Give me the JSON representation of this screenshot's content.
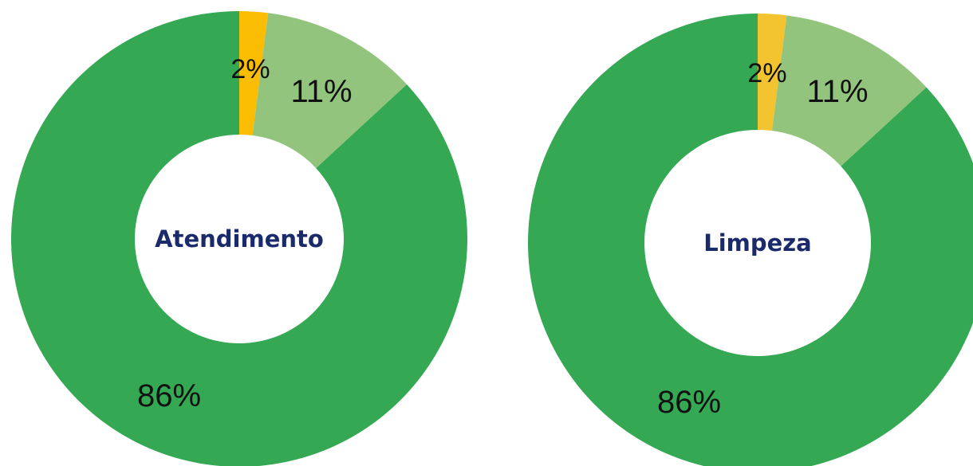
{
  "chart_data": [
    {
      "type": "pie",
      "title": "Atendimento",
      "slices": [
        {
          "value": 2,
          "label": "2%",
          "color": "#fbbc04"
        },
        {
          "value": 11,
          "label": "11%",
          "color": "#93c47d"
        },
        {
          "value": 86,
          "label": "86%",
          "color": "#34a853"
        }
      ]
    },
    {
      "type": "pie",
      "title": "Limpeza",
      "slices": [
        {
          "value": 2,
          "label": "2%",
          "color": "#f4c430"
        },
        {
          "value": 11,
          "label": "11%",
          "color": "#93c47d"
        },
        {
          "value": 86,
          "label": "86%",
          "color": "#34a853"
        }
      ]
    }
  ]
}
